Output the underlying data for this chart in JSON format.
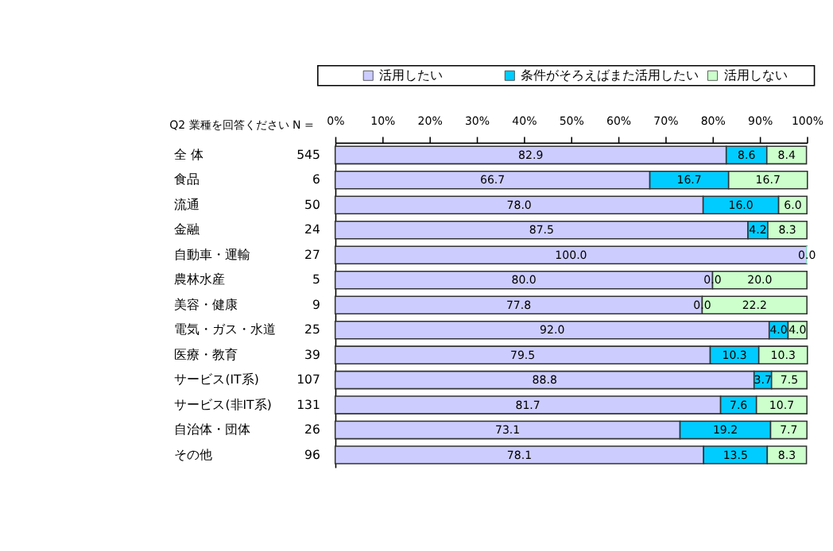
{
  "chart_data": {
    "type": "bar",
    "orientation": "horizontal",
    "stacked": true,
    "ylabel": "Q2 業種を回答ください N =",
    "categories": [
      "全 体",
      "食品",
      "流通",
      "金融",
      "自動車・運輸",
      "農林水産",
      "美容・健康",
      "電気・ガス・水道",
      "医療・教育",
      "サービス(IT系)",
      "サービス(非IT系)",
      "自治体・団体",
      "その他"
    ],
    "y2_categories": [
      "545",
      "6",
      "50",
      "24",
      "27",
      "5",
      "9",
      "25",
      "39",
      "107",
      "131",
      "26",
      "96"
    ],
    "series": [
      {
        "name": "活用したい",
        "color": "#ccccff",
        "values": [
          82.9,
          66.7,
          78.0,
          87.5,
          100.0,
          80.0,
          77.8,
          92.0,
          79.5,
          88.8,
          81.7,
          73.1,
          78.1
        ],
        "value_labels": [
          "82.9",
          "66.7",
          "78.0",
          "87.5",
          "100.0",
          "80.0",
          "77.8",
          "92.0",
          "79.5",
          "88.8",
          "81.7",
          "73.1",
          "78.1"
        ]
      },
      {
        "name": "条件がそろえばまた活用したい",
        "color": "#00ccff",
        "values": [
          8.6,
          16.7,
          16.0,
          4.2,
          0.0,
          0.0,
          0.0,
          4.0,
          10.3,
          3.7,
          7.6,
          19.2,
          13.5
        ],
        "value_labels": [
          "8.6",
          "16.7",
          "16.0",
          "4.2",
          null,
          "0.0",
          "0.0",
          "4.0",
          "10.3",
          "3.7",
          "7.6",
          "19.2",
          "13.5"
        ]
      },
      {
        "name": "活用しない",
        "color": "#ccffcc",
        "values": [
          8.4,
          16.7,
          6.0,
          8.3,
          0.0,
          20.0,
          22.2,
          4.0,
          10.3,
          7.5,
          10.7,
          7.7,
          8.3
        ],
        "value_labels": [
          "8.4",
          "16.7",
          "6.0",
          "8.3",
          "0.0",
          "20.0",
          "22.2",
          "4.0",
          "10.3",
          "7.5",
          "10.7",
          "7.7",
          "8.3"
        ]
      }
    ],
    "xlim": [
      0,
      100
    ],
    "xticks": [
      {
        "value": 0,
        "label": "0%"
      },
      {
        "value": 10,
        "label": "10%"
      },
      {
        "value": 20,
        "label": "20%"
      },
      {
        "value": 30,
        "label": "30%"
      },
      {
        "value": 40,
        "label": "40%"
      },
      {
        "value": 50,
        "label": "50%"
      },
      {
        "value": 60,
        "label": "60%"
      },
      {
        "value": 70,
        "label": "70%"
      },
      {
        "value": 80,
        "label": "80%"
      },
      {
        "value": 90,
        "label": "90%"
      },
      {
        "value": 100,
        "label": "100%"
      }
    ],
    "legend": "top",
    "grid": false
  }
}
